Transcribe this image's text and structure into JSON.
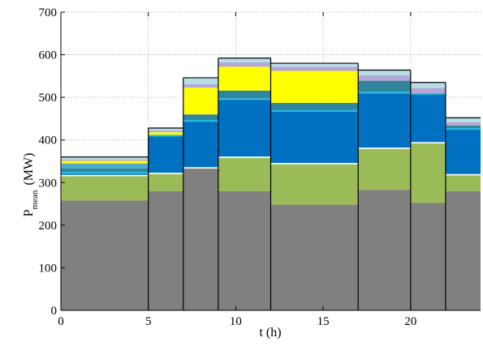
{
  "chart_data": {
    "type": "area",
    "xlabel": "t (h)",
    "ylabel_main": "P",
    "ylabel_sub": "mean",
    "ylabel_unit": "(MW)",
    "xlim": [
      0,
      24
    ],
    "ylim": [
      0,
      700
    ],
    "xticks": [
      "0",
      "5",
      "10",
      "15",
      "20"
    ],
    "xtick_values": [
      0,
      5,
      10,
      15,
      20
    ],
    "yticks": [
      "0",
      "100",
      "200",
      "300",
      "400",
      "500",
      "600",
      "700"
    ],
    "ytick_values": [
      0,
      100,
      200,
      300,
      400,
      500,
      600,
      700
    ],
    "grid": true,
    "legend": "none",
    "intervals": [
      {
        "start": 0,
        "end": 5,
        "series": [
          258,
          57,
          3,
          3,
          4,
          8,
          12,
          6,
          0,
          3,
          0,
          6
        ]
      },
      {
        "start": 5,
        "end": 7,
        "series": [
          280,
          40,
          3,
          85,
          4,
          0,
          0,
          6,
          0,
          4,
          0,
          6
        ]
      },
      {
        "start": 7,
        "end": 9,
        "series": [
          333,
          0,
          3,
          107,
          4,
          13,
          0,
          63,
          0,
          8,
          0,
          15
        ]
      },
      {
        "start": 9,
        "end": 12,
        "series": [
          280,
          78,
          3,
          133,
          4,
          18,
          0,
          56,
          0,
          10,
          0,
          10
        ]
      },
      {
        "start": 12,
        "end": 17,
        "series": [
          248,
          95,
          3,
          120,
          4,
          17,
          0,
          75,
          0,
          10,
          0,
          8
        ]
      },
      {
        "start": 17,
        "end": 20,
        "series": [
          283,
          96,
          3,
          127,
          4,
          26,
          0,
          0,
          0,
          13,
          0,
          12
        ]
      },
      {
        "start": 20,
        "end": 22,
        "series": [
          252,
          140,
          3,
          111,
          4,
          0,
          0,
          0,
          0,
          12,
          0,
          13
        ]
      },
      {
        "start": 22,
        "end": 24,
        "series": [
          280,
          37,
          3,
          104,
          4,
          6,
          0,
          0,
          0,
          8,
          0,
          10
        ]
      }
    ],
    "series_colors": [
      "#808080",
      "#9bbb59",
      "#ffffff",
      "#0070c0",
      "#1fb8e0",
      "#31859c",
      "#4bacc6",
      "#ffff00",
      "#ffffff",
      "#b4a7d6",
      "#ffffff",
      "#b7dde8"
    ]
  }
}
